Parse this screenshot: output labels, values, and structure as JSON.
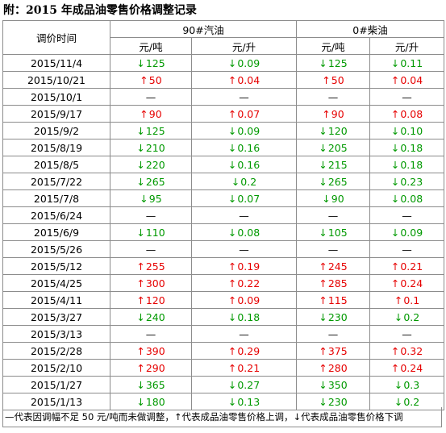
{
  "title": "附：2015 年成品油零售价格调整记录",
  "headers": {
    "date": "调价时间",
    "gasoline": "90#汽油",
    "diesel": "0#柴油",
    "unit_ton": "元/吨",
    "unit_liter": "元/升"
  },
  "arrows": {
    "up": "↑",
    "down": "↓"
  },
  "rows": [
    {
      "date": "2015/11/4",
      "dir": "down",
      "g_ton": "125",
      "g_l": "0.09",
      "d_ton": "125",
      "d_l": "0.11"
    },
    {
      "date": "2015/10/21",
      "dir": "up",
      "g_ton": "50",
      "g_l": "0.04",
      "d_ton": "50",
      "d_l": "0.04"
    },
    {
      "date": "2015/10/1",
      "dir": "same",
      "g_ton": "—",
      "g_l": "—",
      "d_ton": "—",
      "d_l": "—"
    },
    {
      "date": "2015/9/17",
      "dir": "up",
      "g_ton": "90",
      "g_l": "0.07",
      "d_ton": "90",
      "d_l": "0.08"
    },
    {
      "date": "2015/9/2",
      "dir": "down",
      "g_ton": "125",
      "g_l": "0.09",
      "d_ton": "120",
      "d_l": "0.10"
    },
    {
      "date": "2015/8/19",
      "dir": "down",
      "g_ton": "210",
      "g_l": "0.16",
      "d_ton": "205",
      "d_l": "0.18"
    },
    {
      "date": "2015/8/5",
      "dir": "down",
      "g_ton": "220",
      "g_l": "0.16",
      "d_ton": "215",
      "d_l": "0.18"
    },
    {
      "date": "2015/7/22",
      "dir": "down",
      "g_ton": "265",
      "g_l": "0.2",
      "d_ton": "265",
      "d_l": "0.23"
    },
    {
      "date": "2015/7/8",
      "dir": "down",
      "g_ton": "95",
      "g_l": "0.07",
      "d_ton": "90",
      "d_l": "0.08"
    },
    {
      "date": "2015/6/24",
      "dir": "same",
      "g_ton": "—",
      "g_l": "—",
      "d_ton": "—",
      "d_l": "—"
    },
    {
      "date": "2015/6/9",
      "dir": "down",
      "g_ton": "110",
      "g_l": "0.08",
      "d_ton": "105",
      "d_l": "0.09"
    },
    {
      "date": "2015/5/26",
      "dir": "same",
      "g_ton": "—",
      "g_l": "—",
      "d_ton": "—",
      "d_l": "—"
    },
    {
      "date": "2015/5/12",
      "dir": "up",
      "g_ton": "255",
      "g_l": "0.19",
      "d_ton": "245",
      "d_l": "0.21"
    },
    {
      "date": "2015/4/25",
      "dir": "up",
      "g_ton": "300",
      "g_l": "0.22",
      "d_ton": "285",
      "d_l": "0.24"
    },
    {
      "date": "2015/4/11",
      "dir": "up",
      "g_ton": "120",
      "g_l": "0.09",
      "d_ton": "115",
      "d_l": "0.1"
    },
    {
      "date": "2015/3/27",
      "dir": "down",
      "g_ton": "240",
      "g_l": "0.18",
      "d_ton": "230",
      "d_l": "0.2"
    },
    {
      "date": "2015/3/13",
      "dir": "same",
      "g_ton": "—",
      "g_l": "—",
      "d_ton": "—",
      "d_l": "—"
    },
    {
      "date": "2015/2/28",
      "dir": "up",
      "g_ton": "390",
      "g_l": "0.29",
      "d_ton": "375",
      "d_l": "0.32"
    },
    {
      "date": "2015/2/10",
      "dir": "up",
      "g_ton": "290",
      "g_l": "0.21",
      "d_ton": "280",
      "d_l": "0.24"
    },
    {
      "date": "2015/1/27",
      "dir": "down",
      "g_ton": "365",
      "g_l": "0.27",
      "d_ton": "350",
      "d_l": "0.3"
    },
    {
      "date": "2015/1/13",
      "dir": "down",
      "g_ton": "180",
      "g_l": "0.13",
      "d_ton": "230",
      "d_l": "0.2"
    }
  ],
  "footnote": "—代表因调幅不足 50 元/吨而未做调整，↑代表成品油零售价格上调，↓代表成品油零售价格下调",
  "colors": {
    "up": "#e60000",
    "down": "#009900",
    "border": "#8c8c8c"
  }
}
